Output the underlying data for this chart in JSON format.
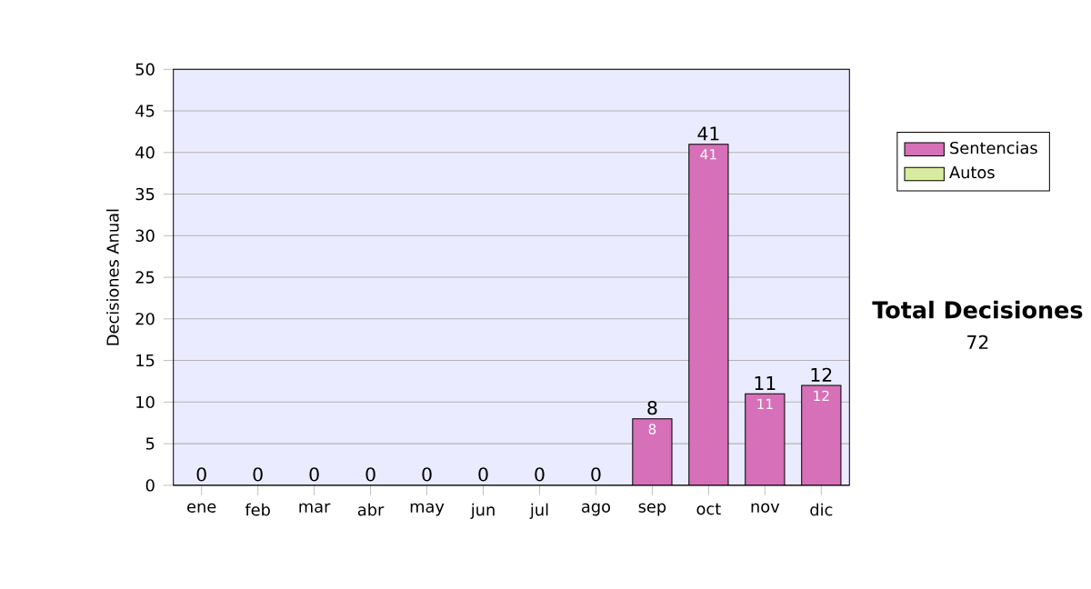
{
  "chart_data": {
    "type": "bar",
    "stacked": true,
    "ylabel": "Decisiones Anual",
    "categories": [
      "ene",
      "feb",
      "mar",
      "abr",
      "may",
      "jun",
      "jul",
      "ago",
      "sep",
      "oct",
      "nov",
      "dic"
    ],
    "series": [
      {
        "name": "Sentencias",
        "color": "#d670b8",
        "values": [
          0,
          0,
          0,
          0,
          0,
          0,
          0,
          0,
          8,
          41,
          11,
          12
        ],
        "value_labels": [
          null,
          null,
          null,
          null,
          null,
          null,
          null,
          null,
          "8",
          "41",
          "11",
          "12"
        ]
      },
      {
        "name": "Autos",
        "color": "#d8eca0",
        "values": [
          0,
          0,
          0,
          0,
          0,
          0,
          0,
          0,
          0,
          0,
          0,
          0
        ]
      }
    ],
    "totals": [
      "0",
      "0",
      "0",
      "0",
      "0",
      "0",
      "0",
      "0",
      "8",
      "41",
      "11",
      "12"
    ],
    "ylim": [
      0,
      50
    ],
    "yticks": [
      0,
      5,
      10,
      15,
      20,
      25,
      30,
      35,
      40,
      45,
      50
    ],
    "grid": "y",
    "legend": "right",
    "annotations": [
      "Total Decisiones",
      "72"
    ]
  }
}
